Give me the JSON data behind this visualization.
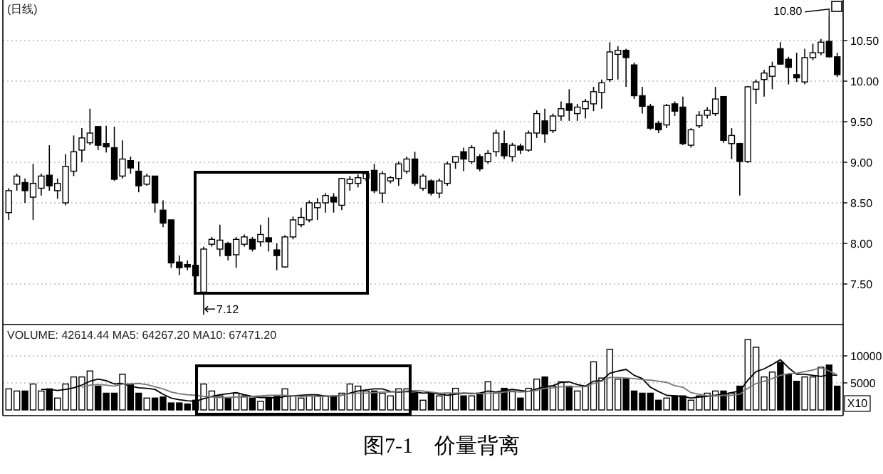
{
  "chart_data": [
    {
      "type": "candlestick",
      "title": "(日线)",
      "categories": [
        null,
        null,
        null,
        null,
        null,
        null,
        null,
        null,
        null,
        null,
        null,
        null,
        null,
        null,
        null,
        null,
        null,
        null,
        null,
        null,
        null,
        null,
        null,
        null,
        null,
        null,
        null,
        null,
        null,
        null,
        null,
        null,
        null,
        null,
        null,
        null,
        null,
        null,
        null,
        null,
        null,
        null,
        null,
        null,
        null,
        null,
        null,
        null,
        null,
        null,
        null,
        null,
        null,
        null,
        null,
        null,
        null,
        null,
        null,
        null,
        null,
        null,
        null,
        null,
        null,
        null,
        null,
        null,
        null,
        null,
        null,
        null,
        null,
        null,
        null,
        null,
        null,
        null,
        null,
        null,
        null,
        null,
        null,
        null,
        null,
        null,
        null,
        null,
        null,
        null,
        null,
        null,
        null,
        null,
        null,
        null,
        null,
        null,
        null,
        null,
        null,
        null,
        null
      ],
      "ohlc": [
        [
          8.38,
          8.68,
          8.29,
          8.65
        ],
        [
          8.73,
          8.86,
          8.65,
          8.83
        ],
        [
          8.75,
          8.8,
          8.5,
          8.65
        ],
        [
          8.57,
          8.98,
          8.29,
          8.74
        ],
        [
          8.68,
          8.86,
          8.59,
          8.83
        ],
        [
          8.84,
          9.21,
          8.65,
          8.71
        ],
        [
          8.65,
          8.8,
          8.55,
          8.74
        ],
        [
          8.5,
          9.1,
          8.47,
          8.95
        ],
        [
          8.89,
          9.33,
          8.83,
          9.13
        ],
        [
          9.15,
          9.42,
          9.0,
          9.3
        ],
        [
          9.24,
          9.66,
          9.21,
          9.36
        ],
        [
          9.44,
          9.44,
          9.15,
          9.21
        ],
        [
          9.23,
          9.45,
          9.12,
          9.19
        ],
        [
          9.18,
          9.44,
          8.77,
          8.79
        ],
        [
          8.83,
          9.27,
          8.8,
          9.04
        ],
        [
          9.02,
          9.07,
          8.86,
          8.93
        ],
        [
          8.89,
          9.01,
          8.63,
          8.71
        ],
        [
          8.73,
          8.86,
          8.71,
          8.83
        ],
        [
          8.83,
          8.83,
          8.38,
          8.5
        ],
        [
          8.41,
          8.53,
          8.2,
          8.25
        ],
        [
          8.29,
          8.29,
          7.7,
          7.76
        ],
        [
          7.77,
          7.85,
          7.61,
          7.7
        ],
        [
          7.74,
          7.79,
          7.67,
          7.71
        ],
        [
          7.73,
          7.85,
          7.55,
          7.6
        ],
        [
          7.4,
          7.96,
          7.12,
          7.93
        ],
        [
          7.99,
          8.08,
          7.96,
          8.05
        ],
        [
          7.93,
          8.23,
          7.84,
          8.04
        ],
        [
          8.0,
          8.02,
          7.79,
          7.85
        ],
        [
          7.86,
          8.08,
          7.7,
          8.05
        ],
        [
          7.99,
          8.11,
          7.96,
          8.08
        ],
        [
          8.05,
          8.08,
          7.9,
          7.93
        ],
        [
          8.02,
          8.23,
          7.96,
          8.11
        ],
        [
          8.07,
          8.32,
          7.9,
          8.02
        ],
        [
          7.92,
          8.0,
          7.67,
          7.85
        ],
        [
          7.71,
          8.1,
          7.7,
          8.08
        ],
        [
          8.08,
          8.33,
          8.05,
          8.29
        ],
        [
          8.23,
          8.44,
          8.2,
          8.32
        ],
        [
          8.29,
          8.53,
          8.26,
          8.5
        ],
        [
          8.44,
          8.56,
          8.29,
          8.5
        ],
        [
          8.5,
          8.62,
          8.38,
          8.59
        ],
        [
          8.57,
          8.62,
          8.38,
          8.51
        ],
        [
          8.47,
          8.81,
          8.41,
          8.8
        ],
        [
          8.74,
          8.83,
          8.65,
          8.79
        ],
        [
          8.74,
          8.85,
          8.69,
          8.81
        ],
        [
          8.8,
          8.89,
          8.77,
          8.86
        ],
        [
          8.9,
          8.98,
          8.62,
          8.65
        ],
        [
          8.62,
          8.89,
          8.5,
          8.86
        ],
        [
          8.77,
          8.83,
          8.74,
          8.81
        ],
        [
          8.8,
          9.01,
          8.71,
          8.98
        ],
        [
          8.89,
          9.07,
          8.86,
          9.04
        ],
        [
          9.04,
          9.13,
          8.71,
          8.74
        ],
        [
          8.68,
          8.86,
          8.65,
          8.83
        ],
        [
          8.77,
          8.79,
          8.59,
          8.62
        ],
        [
          8.62,
          8.8,
          8.56,
          8.77
        ],
        [
          8.74,
          9.01,
          8.71,
          8.98
        ],
        [
          9.0,
          9.08,
          8.92,
          9.07
        ],
        [
          9.13,
          9.18,
          8.89,
          9.04
        ],
        [
          9.01,
          9.21,
          8.98,
          9.18
        ],
        [
          9.07,
          9.1,
          8.89,
          8.92
        ],
        [
          9.01,
          9.15,
          8.98,
          9.11
        ],
        [
          9.13,
          9.4,
          9.07,
          9.36
        ],
        [
          9.23,
          9.39,
          9.04,
          9.08
        ],
        [
          9.07,
          9.24,
          9.01,
          9.21
        ],
        [
          9.2,
          9.23,
          9.1,
          9.15
        ],
        [
          9.15,
          9.39,
          9.13,
          9.36
        ],
        [
          9.36,
          9.64,
          9.3,
          9.6
        ],
        [
          9.51,
          9.66,
          9.24,
          9.35
        ],
        [
          9.39,
          9.6,
          9.36,
          9.57
        ],
        [
          9.57,
          9.75,
          9.51,
          9.66
        ],
        [
          9.72,
          9.9,
          9.51,
          9.64
        ],
        [
          9.6,
          9.72,
          9.51,
          9.68
        ],
        [
          9.66,
          9.78,
          9.54,
          9.75
        ],
        [
          9.72,
          9.93,
          9.63,
          9.87
        ],
        [
          9.86,
          10.02,
          9.66,
          9.98
        ],
        [
          10.02,
          10.48,
          9.99,
          10.36
        ],
        [
          10.33,
          10.43,
          10.02,
          10.38
        ],
        [
          10.38,
          10.4,
          9.93,
          10.29
        ],
        [
          10.2,
          10.23,
          9.78,
          9.82
        ],
        [
          9.82,
          9.93,
          9.6,
          9.69
        ],
        [
          9.69,
          9.72,
          9.4,
          9.42
        ],
        [
          9.48,
          9.51,
          9.36,
          9.4
        ],
        [
          9.46,
          9.72,
          9.42,
          9.7
        ],
        [
          9.72,
          9.75,
          9.57,
          9.63
        ],
        [
          9.68,
          9.81,
          9.21,
          9.23
        ],
        [
          9.21,
          9.42,
          9.18,
          9.4
        ],
        [
          9.45,
          9.63,
          9.42,
          9.58
        ],
        [
          9.58,
          9.68,
          9.54,
          9.64
        ],
        [
          9.6,
          9.93,
          9.57,
          9.78
        ],
        [
          9.81,
          9.81,
          9.24,
          9.27
        ],
        [
          9.23,
          9.42,
          9.04,
          9.33
        ],
        [
          9.23,
          9.24,
          8.59,
          9.01
        ],
        [
          9.01,
          9.94,
          8.99,
          9.93
        ],
        [
          9.9,
          10.02,
          9.72,
          9.99
        ],
        [
          10.02,
          10.14,
          9.81,
          10.1
        ],
        [
          10.06,
          10.24,
          9.9,
          10.18
        ],
        [
          10.4,
          10.48,
          10.2,
          10.21
        ],
        [
          10.27,
          10.3,
          9.96,
          10.17
        ],
        [
          10.08,
          10.35,
          9.99,
          10.04
        ],
        [
          9.99,
          10.4,
          9.96,
          10.29
        ],
        [
          10.29,
          10.46,
          10.26,
          10.35
        ],
        [
          10.35,
          10.52,
          10.32,
          10.48
        ],
        [
          10.49,
          10.8,
          10.29,
          10.3
        ],
        [
          10.3,
          10.35,
          10.05,
          10.08
        ]
      ],
      "ylim": [
        7.0,
        11.0
      ],
      "yticks": [
        {
          "value": 7.5,
          "label": "7.50"
        },
        {
          "value": 8,
          "label": "8.00"
        },
        {
          "value": 8.5,
          "label": "8.50"
        },
        {
          "value": 9,
          "label": "9.00"
        },
        {
          "value": 9.5,
          "label": "9.50"
        },
        {
          "value": 10,
          "label": "10.00"
        },
        {
          "value": 10.5,
          "label": "10.50"
        }
      ],
      "grid": "y",
      "annotations": [
        "7.12",
        "10.80"
      ]
    },
    {
      "type": "bar",
      "title": "VOLUME: 42614.44 MA5: 64267.20 MA10: 67471.20",
      "ylabel": "X10",
      "categories": [
        null,
        null,
        null,
        null,
        null,
        null,
        null,
        null,
        null,
        null,
        null,
        null,
        null,
        null,
        null,
        null,
        null,
        null,
        null,
        null,
        null,
        null,
        null,
        null,
        null,
        null,
        null,
        null,
        null,
        null,
        null,
        null,
        null,
        null,
        null,
        null,
        null,
        null,
        null,
        null,
        null,
        null,
        null,
        null,
        null,
        null,
        null,
        null,
        null,
        null,
        null,
        null,
        null,
        null,
        null,
        null,
        null,
        null,
        null,
        null,
        null,
        null,
        null,
        null,
        null,
        null,
        null,
        null,
        null,
        null,
        null,
        null,
        null,
        null,
        null,
        null,
        null,
        null,
        null,
        null,
        null,
        null,
        null,
        null,
        null,
        null,
        null,
        null,
        null,
        null,
        null,
        null,
        null,
        null,
        null,
        null,
        null,
        null,
        null,
        null,
        null,
        null,
        null
      ],
      "ylim": [
        0,
        15500
      ],
      "yticks": [
        5000,
        10000
      ],
      "grid": "y",
      "series": [
        {
          "type": "bar",
          "colors": [
            "#ffffff",
            "#ffffff",
            "#000000",
            "#ffffff",
            "#ffffff",
            "#000000",
            "#ffffff",
            "#ffffff",
            "#ffffff",
            "#ffffff",
            "#ffffff",
            "#000000",
            "#000000",
            "#000000",
            "#ffffff",
            "#000000",
            "#000000",
            "#ffffff",
            "#000000",
            "#000000",
            "#000000",
            "#000000",
            "#000000",
            "#000000",
            "#ffffff",
            "#ffffff",
            "#ffffff",
            "#000000",
            "#ffffff",
            "#ffffff",
            "#000000",
            "#ffffff",
            "#000000",
            "#000000",
            "#ffffff",
            "#ffffff",
            "#ffffff",
            "#ffffff",
            "#ffffff",
            "#ffffff",
            "#000000",
            "#ffffff",
            "#ffffff",
            "#ffffff",
            "#ffffff",
            "#000000",
            "#ffffff",
            "#ffffff",
            "#ffffff",
            "#ffffff",
            "#000000",
            "#ffffff",
            "#000000",
            "#ffffff",
            "#ffffff",
            "#ffffff",
            "#000000",
            "#ffffff",
            "#000000",
            "#ffffff",
            "#ffffff",
            "#000000",
            "#ffffff",
            "#000000",
            "#ffffff",
            "#ffffff",
            "#000000",
            "#ffffff",
            "#ffffff",
            "#000000",
            "#ffffff",
            "#ffffff",
            "#ffffff",
            "#ffffff",
            "#ffffff",
            "#ffffff",
            "#000000",
            "#000000",
            "#000000",
            "#000000",
            "#000000",
            "#ffffff",
            "#000000",
            "#000000",
            "#ffffff",
            "#ffffff",
            "#ffffff",
            "#ffffff",
            "#000000",
            "#ffffff",
            "#000000",
            "#ffffff",
            "#ffffff",
            "#ffffff",
            "#ffffff",
            "#000000",
            "#000000",
            "#000000",
            "#ffffff",
            "#ffffff",
            "#ffffff",
            "#000000",
            "#000000"
          ],
          "values": [
            3900,
            3500,
            3500,
            4800,
            3500,
            3900,
            2200,
            4800,
            6100,
            6100,
            7200,
            4400,
            3100,
            3100,
            6600,
            4800,
            3100,
            2200,
            2200,
            2400,
            1300,
            1300,
            1100,
            1800,
            4800,
            3500,
            2600,
            2200,
            3100,
            2600,
            2200,
            1600,
            2200,
            2600,
            3900,
            2600,
            2200,
            2600,
            2600,
            2600,
            2600,
            3100,
            4800,
            4400,
            3500,
            3500,
            3100,
            2600,
            3900,
            3900,
            3100,
            1800,
            3100,
            2600,
            3100,
            4000,
            2600,
            2600,
            3100,
            5200,
            3100,
            4000,
            3500,
            2200,
            4000,
            5700,
            6100,
            4400,
            5200,
            4400,
            3500,
            4400,
            8900,
            5900,
            11200,
            5700,
            5700,
            3500,
            3100,
            3100,
            1800,
            2200,
            2600,
            2600,
            1800,
            2600,
            3100,
            3500,
            3500,
            3100,
            4400,
            13000,
            11600,
            6100,
            7000,
            8800,
            6600,
            5300,
            6100,
            6100,
            7900,
            8300,
            4400
          ]
        },
        {
          "type": "line",
          "color": "#000000",
          "values": [
            null,
            null,
            null,
            null,
            3800,
            3800,
            3600,
            3800,
            4100,
            4600,
            5300,
            5700,
            5400,
            4800,
            4900,
            4400,
            4100,
            4000,
            3800,
            2900,
            2200,
            1900,
            1700,
            1600,
            2100,
            2500,
            2800,
            3000,
            3200,
            2800,
            2500,
            2300,
            2300,
            2200,
            2500,
            2600,
            2700,
            2800,
            2800,
            2500,
            2500,
            2700,
            3100,
            3500,
            3700,
            3900,
            3900,
            3400,
            3300,
            3400,
            3300,
            3100,
            3200,
            2900,
            2700,
            2900,
            3100,
            3000,
            3100,
            3500,
            3300,
            3600,
            3800,
            3600,
            3400,
            3900,
            4300,
            4500,
            5100,
            5200,
            4700,
            4400,
            5300,
            5400,
            6800,
            7200,
            7500,
            6400,
            5800,
            4200,
            3400,
            2700,
            2600,
            2500,
            2200,
            2400,
            2500,
            2700,
            2900,
            3200,
            3500,
            5500,
            7100,
            7600,
            8400,
            9300,
            7800,
            6600,
            6600,
            6400,
            6200,
            6500,
            6400
          ]
        },
        {
          "type": "line",
          "color": "#777777",
          "values": [
            null,
            null,
            null,
            null,
            null,
            null,
            null,
            null,
            null,
            4200,
            4600,
            4700,
            4600,
            4400,
            4800,
            4800,
            4900,
            4700,
            4300,
            3900,
            3300,
            3000,
            2800,
            2700,
            2500,
            2400,
            2300,
            2300,
            2400,
            2400,
            2500,
            2600,
            2700,
            2700,
            2700,
            2600,
            2500,
            2600,
            2500,
            2500,
            2600,
            2700,
            3000,
            3100,
            3100,
            3200,
            3300,
            3300,
            3400,
            3500,
            3600,
            3500,
            3300,
            3100,
            3100,
            3100,
            3100,
            3100,
            3000,
            3100,
            3100,
            3300,
            3400,
            3300,
            3400,
            3600,
            4000,
            4100,
            4300,
            4300,
            4300,
            4300,
            4900,
            5300,
            6000,
            6000,
            5900,
            5800,
            5600,
            5500,
            5300,
            5100,
            4500,
            4200,
            3200,
            2900,
            2600,
            2600,
            2700,
            2700,
            2900,
            4000,
            4900,
            5300,
            5800,
            6400,
            6700,
            6800,
            7100,
            7400,
            7800,
            7200,
            6500
          ]
        }
      ],
      "annotations": [
        "图7-1　价量背离"
      ]
    }
  ]
}
